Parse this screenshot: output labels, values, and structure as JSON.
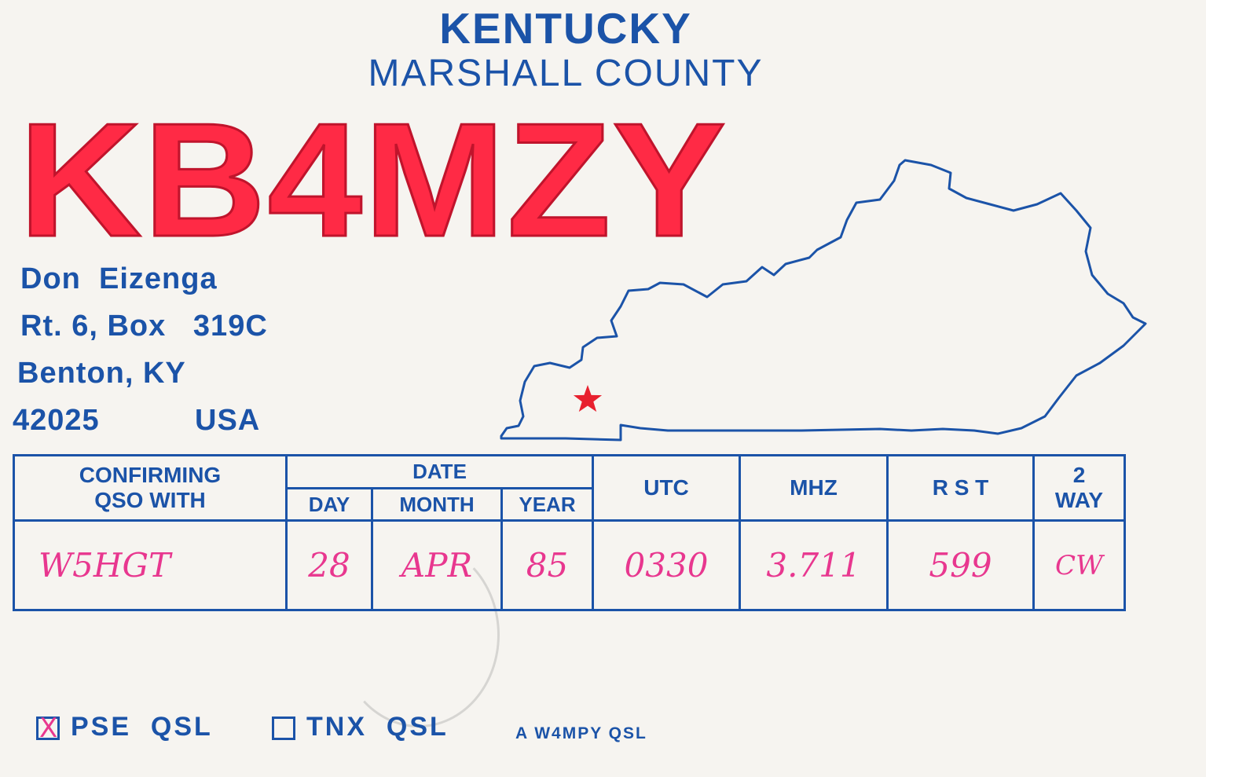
{
  "card": {
    "state": "KENTUCKY",
    "county": "MARSHALL COUNTY",
    "callsign": "KB4MZY"
  },
  "address": {
    "name": "Don  Eizenga",
    "street": "Rt. 6, Box   319C",
    "city": "Benton, KY",
    "zip": "42025",
    "country": "USA"
  },
  "table": {
    "headers": {
      "confirming_line1": "CONFIRMING",
      "confirming_line2": "QSO WITH",
      "date": "DATE",
      "day": "DAY",
      "month": "MONTH",
      "year": "YEAR",
      "utc": "UTC",
      "mhz": "MHZ",
      "rst": "R S T",
      "way_line1": "2",
      "way_line2": "WAY"
    },
    "entry": {
      "station": "W5HGT",
      "day": "28",
      "month": "APR",
      "year": "85",
      "utc": "0330",
      "mhz": "3.711",
      "rst": "599",
      "mode": "CW"
    }
  },
  "footer": {
    "pse_qsl": "PSE  QSL",
    "pse_checked_mark": "X",
    "tnx_qsl": "TNX  QSL",
    "credit": "A W4MPY QSL"
  },
  "colors": {
    "ink_blue": "#1b53a8",
    "callsign_red": "#ff2a45",
    "handwriting_pink": "#e8378f",
    "star_red": "#e8202e"
  }
}
